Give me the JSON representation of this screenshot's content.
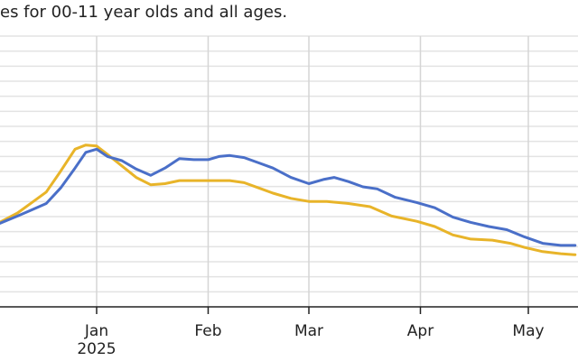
{
  "header": {
    "subtitle": "es for 00-11 year olds and all ages."
  },
  "chart_data": {
    "type": "line",
    "subtitle": "es for 00-11 year olds and all ages.",
    "xlabel": "",
    "ylabel": "",
    "grid": true,
    "x_ticks": [
      {
        "date": "2025-01-01",
        "label": "Jan",
        "sublabel": "2025"
      },
      {
        "date": "2025-02-01",
        "label": "Feb",
        "sublabel": ""
      },
      {
        "date": "2025-03-01",
        "label": "Mar",
        "sublabel": ""
      },
      {
        "date": "2025-04-01",
        "label": "Apr",
        "sublabel": ""
      },
      {
        "date": "2025-05-01",
        "label": "May",
        "sublabel": ""
      }
    ],
    "xlim": [
      "2024-12-01",
      "2025-05-14"
    ],
    "series": [
      {
        "color": "#4a6fc8",
        "points": [
          [
            "2024-12-01",
            3.3
          ],
          [
            "2024-12-05",
            3.3
          ],
          [
            "2024-12-10",
            3.65
          ],
          [
            "2024-12-14",
            3.95
          ],
          [
            "2024-12-18",
            4.25
          ],
          [
            "2024-12-22",
            5.0
          ],
          [
            "2024-12-26",
            5.95
          ],
          [
            "2024-12-29",
            6.7
          ],
          [
            "2025-01-01",
            6.85
          ],
          [
            "2025-01-04",
            6.5
          ],
          [
            "2025-01-08",
            6.3
          ],
          [
            "2025-01-12",
            5.9
          ],
          [
            "2025-01-16",
            5.6
          ],
          [
            "2025-01-20",
            5.95
          ],
          [
            "2025-01-24",
            6.4
          ],
          [
            "2025-01-28",
            6.35
          ],
          [
            "2025-02-01",
            6.35
          ],
          [
            "2025-02-04",
            6.5
          ],
          [
            "2025-02-07",
            6.55
          ],
          [
            "2025-02-11",
            6.45
          ],
          [
            "2025-02-15",
            6.2
          ],
          [
            "2025-02-19",
            5.95
          ],
          [
            "2025-02-24",
            5.5
          ],
          [
            "2025-03-01",
            5.2
          ],
          [
            "2025-03-05",
            5.4
          ],
          [
            "2025-03-08",
            5.5
          ],
          [
            "2025-03-12",
            5.3
          ],
          [
            "2025-03-16",
            5.05
          ],
          [
            "2025-03-20",
            4.95
          ],
          [
            "2025-03-25",
            4.55
          ],
          [
            "2025-03-31",
            4.3
          ],
          [
            "2025-04-05",
            4.05
          ],
          [
            "2025-04-10",
            3.6
          ],
          [
            "2025-04-15",
            3.35
          ],
          [
            "2025-04-20",
            3.15
          ],
          [
            "2025-04-25",
            3.0
          ],
          [
            "2025-04-30",
            2.65
          ],
          [
            "2025-05-05",
            2.35
          ],
          [
            "2025-05-10",
            2.25
          ],
          [
            "2025-05-14",
            2.25
          ]
        ]
      },
      {
        "color": "#e8b429",
        "points": [
          [
            "2024-12-01",
            3.3
          ],
          [
            "2024-12-05",
            3.35
          ],
          [
            "2024-12-10",
            3.8
          ],
          [
            "2024-12-14",
            4.3
          ],
          [
            "2024-12-18",
            4.8
          ],
          [
            "2024-12-22",
            5.8
          ],
          [
            "2024-12-26",
            6.85
          ],
          [
            "2024-12-29",
            7.05
          ],
          [
            "2025-01-01",
            7.0
          ],
          [
            "2025-01-04",
            6.6
          ],
          [
            "2025-01-08",
            6.05
          ],
          [
            "2025-01-12",
            5.5
          ],
          [
            "2025-01-16",
            5.15
          ],
          [
            "2025-01-20",
            5.2
          ],
          [
            "2025-01-24",
            5.35
          ],
          [
            "2025-02-01",
            5.35
          ],
          [
            "2025-02-07",
            5.35
          ],
          [
            "2025-02-11",
            5.25
          ],
          [
            "2025-02-15",
            5.0
          ],
          [
            "2025-02-19",
            4.75
          ],
          [
            "2025-02-24",
            4.5
          ],
          [
            "2025-03-01",
            4.35
          ],
          [
            "2025-03-06",
            4.35
          ],
          [
            "2025-03-12",
            4.25
          ],
          [
            "2025-03-18",
            4.1
          ],
          [
            "2025-03-24",
            3.65
          ],
          [
            "2025-03-31",
            3.4
          ],
          [
            "2025-04-05",
            3.15
          ],
          [
            "2025-04-10",
            2.75
          ],
          [
            "2025-04-15",
            2.55
          ],
          [
            "2025-04-21",
            2.5
          ],
          [
            "2025-04-26",
            2.35
          ],
          [
            "2025-04-30",
            2.15
          ],
          [
            "2025-05-05",
            1.95
          ],
          [
            "2025-05-10",
            1.85
          ],
          [
            "2025-05-14",
            1.8
          ]
        ]
      }
    ]
  }
}
